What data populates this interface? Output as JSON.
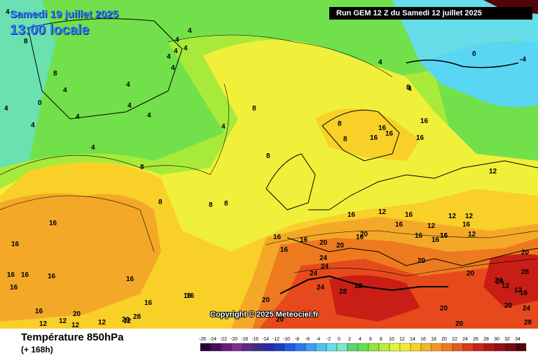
{
  "header": {
    "date": "Samedi 19 juillet 2025",
    "time": "13:00 locale",
    "run": "Run GEM 12 Z du Samedi 12 juillet 2025"
  },
  "copyright": "Copyright © 2025 Meteociel.fr",
  "parameter": {
    "title": "Température 850hPa",
    "subtitle": "(+ 168h)"
  },
  "legend": {
    "values": [
      "-26",
      "-24",
      "-22",
      "-20",
      "-18",
      "-16",
      "-14",
      "-12",
      "-10",
      "-8",
      "-6",
      "-4",
      "-2",
      "0",
      "2",
      "4",
      "6",
      "8",
      "10",
      "12",
      "14",
      "16",
      "18",
      "20",
      "22",
      "24",
      "26",
      "28",
      "30",
      "32",
      "34"
    ],
    "colors": [
      "#2b0036",
      "#4a0a5e",
      "#6a1a7a",
      "#852a8f",
      "#5c2a86",
      "#3a2d8a",
      "#2a2aa8",
      "#1e3cc8",
      "#1e5ae6",
      "#2a7bf0",
      "#3aa0f5",
      "#4cc4f0",
      "#66dde8",
      "#7fe8c8",
      "#56d86a",
      "#66e04a",
      "#8ee63a",
      "#b8ee3a",
      "#e4f23a",
      "#f6ec2e",
      "#f8d228",
      "#f6b628",
      "#f49a24",
      "#f07c20",
      "#e85a1c",
      "#de3a18",
      "#cc2216",
      "#b41414",
      "#960e12",
      "#760a10",
      "#520408"
    ]
  },
  "map": {
    "colors": {
      "cold": "#5ad6f5",
      "cool": "#6be0b0",
      "green": "#72e04a",
      "lime": "#a8ea3a",
      "yellow": "#f0f03a",
      "amber": "#f8d028",
      "orange": "#f4a828",
      "dark_orange": "#ee7a20",
      "red": "#e64a1c",
      "deep_red": "#c81e16",
      "sea": "#f2ec3a"
    },
    "isotherms": [
      "4",
      "4",
      "4",
      "4",
      "4",
      "4",
      "4",
      "4",
      "4",
      "8",
      "8",
      "8",
      "8",
      "0",
      "4",
      "4",
      "4",
      "4",
      "4",
      "4",
      "4",
      "4",
      "8",
      "8",
      "8",
      "8",
      "8",
      "8",
      "-4",
      "0",
      "4",
      "8",
      "16",
      "16",
      "16",
      "16",
      "16",
      "12",
      "12",
      "12",
      "16",
      "16",
      "16",
      "12",
      "12",
      "12",
      "16",
      "16",
      "16",
      "16",
      "20",
      "20",
      "20",
      "24",
      "24",
      "24",
      "24",
      "28",
      "28",
      "20",
      "20",
      "24",
      "20",
      "24",
      "28",
      "28",
      "20",
      "20",
      "20",
      "24",
      "20",
      "16",
      "16",
      "16",
      "16",
      "16",
      "16",
      "16",
      "16",
      "16",
      "16",
      "16",
      "20",
      "20",
      "28",
      "20",
      "12",
      "16",
      "16",
      "16",
      "12",
      "12",
      "12",
      "12",
      "12",
      "16",
      "12",
      "16",
      "16",
      "12"
    ]
  }
}
